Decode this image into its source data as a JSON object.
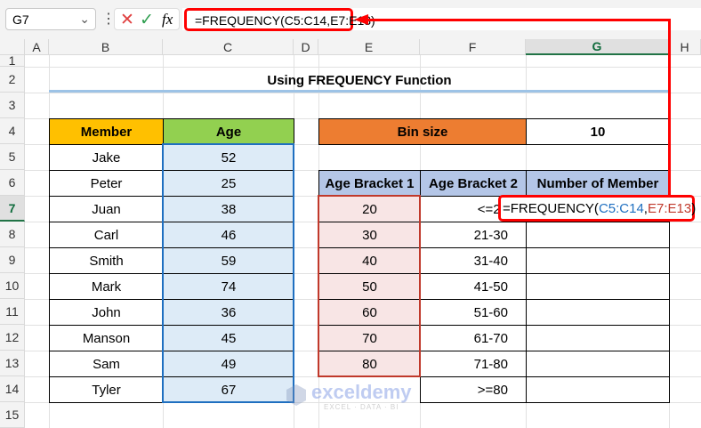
{
  "formula_bar": {
    "name_box": "G7",
    "formula": "=FREQUENCY(C5:C14,E7:E13)",
    "cancel_icon": "cross-icon",
    "enter_icon": "check-icon",
    "fx_label": "fx"
  },
  "columns": [
    "A",
    "B",
    "C",
    "D",
    "E",
    "F",
    "G",
    "H"
  ],
  "selected_column": "G",
  "rows": [
    "1",
    "2",
    "3",
    "4",
    "5",
    "6",
    "7",
    "8",
    "9",
    "10",
    "11",
    "12",
    "13",
    "14",
    "15"
  ],
  "selected_row": "7",
  "title": "Using FREQUENCY Function",
  "members_table": {
    "headers": [
      "Member",
      "Age"
    ],
    "rows": [
      [
        "Jake",
        "52"
      ],
      [
        "Peter",
        "25"
      ],
      [
        "Juan",
        "38"
      ],
      [
        "Carl",
        "46"
      ],
      [
        "Smith",
        "59"
      ],
      [
        "Mark",
        "74"
      ],
      [
        "John",
        "36"
      ],
      [
        "Manson",
        "45"
      ],
      [
        "Sam",
        "49"
      ],
      [
        "Tyler",
        "67"
      ]
    ]
  },
  "bin": {
    "label": "Bin size",
    "value": "10"
  },
  "freq_table": {
    "headers": [
      "Age Bracket 1",
      "Age Bracket 2",
      "Number of Member"
    ],
    "bracket1": [
      "20",
      "30",
      "40",
      "50",
      "60",
      "70",
      "80"
    ],
    "bracket2": [
      "<=20",
      "21-30",
      "31-40",
      "41-50",
      "51-60",
      "61-70",
      "71-80",
      ">=80"
    ],
    "formula_parts": [
      [
        "=FREQUENCY(",
        "#000000"
      ],
      [
        "C5:C14",
        "#1f6fc0"
      ],
      [
        ",",
        "#000000"
      ],
      [
        "E7:E13",
        "#c0392b"
      ],
      [
        ")",
        "#000000"
      ]
    ]
  },
  "watermark": {
    "brand": "exceldemy",
    "tagline": "EXCEL · DATA · BI"
  },
  "colors": {
    "orange_header": "#ffc000",
    "green_header": "#92d050",
    "bin_header": "#ed7d31",
    "blue_header": "#b4c6e7",
    "age_fill": "#ddebf7",
    "bracket_fill": "#f8e5e5",
    "highlight": "#ff0000"
  }
}
